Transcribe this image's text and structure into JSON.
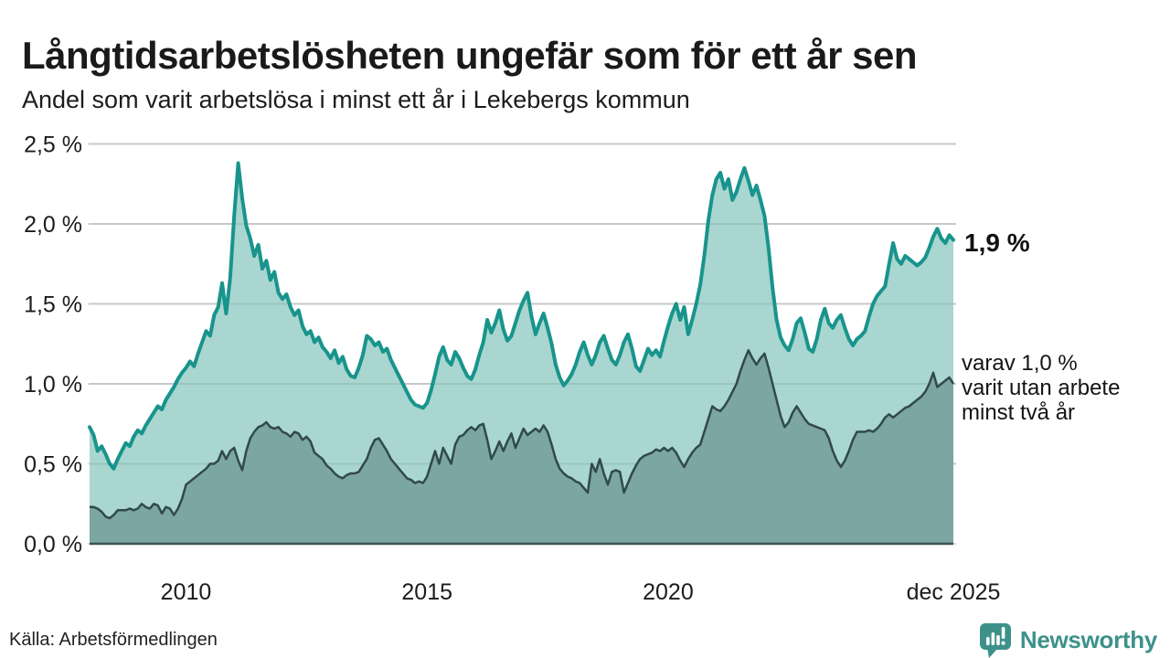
{
  "header": {
    "title": "Långtidsarbetslösheten ungefär som för ett år sen",
    "subtitle": "Andel som varit arbetslösa i minst ett år i Lekebergs kommun"
  },
  "annotations": {
    "latest_total": "1,9 %",
    "two_year_note": "varav 1,0 %\nvarit utan arbete\nminst två år"
  },
  "footer": {
    "source": "Källa: Arbetsförmedlingen",
    "logo_text": "Newsworthy"
  },
  "icons": {
    "logo_icon": "newsworthy-bar-chart-speech-bubble"
  },
  "chart_data": {
    "type": "area",
    "frequency": "monthly",
    "x_start": "2008-01",
    "x_end": "2025-12",
    "unit": "%",
    "ylim": [
      0,
      2.5
    ],
    "grid": true,
    "legend_position": "none",
    "y_ticks": [
      {
        "value": 0.0,
        "label": "0,0 %"
      },
      {
        "value": 0.5,
        "label": "0,5 %"
      },
      {
        "value": 1.0,
        "label": "1,0 %"
      },
      {
        "value": 1.5,
        "label": "1,5 %"
      },
      {
        "value": 2.0,
        "label": "2,0 %"
      },
      {
        "value": 2.5,
        "label": "2,5 %"
      }
    ],
    "x_ticks": [
      {
        "label": "2010",
        "month_index": 24
      },
      {
        "label": "2015",
        "month_index": 84
      },
      {
        "label": "2020",
        "month_index": 144
      },
      {
        "label": "dec 2025",
        "month_index": 215
      }
    ],
    "colors": {
      "total_line": "#18948c",
      "total_fill": "#a9d6d0",
      "two_plus_line": "#31494b",
      "two_plus_fill": "#7ba6a1",
      "gridline": "#dadada",
      "gridline_overlay": "rgba(40,60,58,0.10)",
      "axis_line": "#3c5153",
      "tick_text": "#1c1c1c",
      "logo_teal": "#3d9189"
    },
    "series": [
      {
        "name": "Arbetslösa minst ett år",
        "latest_value": 1.9,
        "values": [
          0.73,
          0.68,
          0.58,
          0.61,
          0.56,
          0.5,
          0.47,
          0.53,
          0.58,
          0.63,
          0.61,
          0.67,
          0.71,
          0.69,
          0.74,
          0.78,
          0.82,
          0.86,
          0.84,
          0.9,
          0.94,
          0.98,
          1.03,
          1.07,
          1.1,
          1.14,
          1.11,
          1.19,
          1.26,
          1.33,
          1.3,
          1.43,
          1.48,
          1.63,
          1.44,
          1.66,
          2.05,
          2.38,
          2.16,
          1.99,
          1.91,
          1.8,
          1.87,
          1.72,
          1.77,
          1.65,
          1.7,
          1.57,
          1.53,
          1.56,
          1.48,
          1.43,
          1.46,
          1.36,
          1.31,
          1.33,
          1.26,
          1.29,
          1.23,
          1.2,
          1.16,
          1.21,
          1.13,
          1.17,
          1.09,
          1.05,
          1.04,
          1.1,
          1.18,
          1.3,
          1.28,
          1.24,
          1.26,
          1.2,
          1.22,
          1.15,
          1.1,
          1.05,
          1.0,
          0.95,
          0.9,
          0.87,
          0.86,
          0.85,
          0.88,
          0.96,
          1.06,
          1.17,
          1.23,
          1.15,
          1.12,
          1.2,
          1.16,
          1.1,
          1.05,
          1.03,
          1.09,
          1.18,
          1.26,
          1.4,
          1.32,
          1.38,
          1.46,
          1.34,
          1.27,
          1.3,
          1.38,
          1.46,
          1.52,
          1.57,
          1.42,
          1.31,
          1.38,
          1.44,
          1.35,
          1.25,
          1.12,
          1.04,
          0.99,
          1.02,
          1.06,
          1.12,
          1.2,
          1.26,
          1.18,
          1.12,
          1.18,
          1.26,
          1.3,
          1.22,
          1.15,
          1.12,
          1.18,
          1.26,
          1.31,
          1.22,
          1.11,
          1.08,
          1.15,
          1.22,
          1.18,
          1.21,
          1.17,
          1.27,
          1.36,
          1.44,
          1.5,
          1.4,
          1.48,
          1.31,
          1.4,
          1.5,
          1.62,
          1.8,
          2.02,
          2.18,
          2.28,
          2.32,
          2.22,
          2.28,
          2.15,
          2.2,
          2.28,
          2.35,
          2.27,
          2.18,
          2.24,
          2.15,
          2.05,
          1.85,
          1.6,
          1.4,
          1.29,
          1.24,
          1.21,
          1.28,
          1.38,
          1.41,
          1.32,
          1.22,
          1.2,
          1.28,
          1.4,
          1.47,
          1.38,
          1.35,
          1.4,
          1.43,
          1.35,
          1.28,
          1.24,
          1.28,
          1.3,
          1.33,
          1.42,
          1.5,
          1.55,
          1.58,
          1.61,
          1.75,
          1.88,
          1.78,
          1.75,
          1.8,
          1.78,
          1.76,
          1.74,
          1.76,
          1.79,
          1.85,
          1.92,
          1.97,
          1.91,
          1.88,
          1.93,
          1.9
        ]
      },
      {
        "name": "varav utan arbete minst två år",
        "latest_value": 1.0,
        "values": [
          0.23,
          0.23,
          0.22,
          0.2,
          0.17,
          0.16,
          0.18,
          0.21,
          0.21,
          0.21,
          0.22,
          0.21,
          0.22,
          0.25,
          0.23,
          0.22,
          0.25,
          0.24,
          0.19,
          0.23,
          0.22,
          0.18,
          0.22,
          0.28,
          0.37,
          0.39,
          0.41,
          0.43,
          0.45,
          0.47,
          0.5,
          0.5,
          0.52,
          0.58,
          0.53,
          0.58,
          0.6,
          0.52,
          0.46,
          0.58,
          0.66,
          0.7,
          0.73,
          0.74,
          0.76,
          0.73,
          0.72,
          0.73,
          0.7,
          0.69,
          0.67,
          0.7,
          0.69,
          0.65,
          0.67,
          0.64,
          0.57,
          0.55,
          0.53,
          0.49,
          0.47,
          0.44,
          0.42,
          0.41,
          0.43,
          0.44,
          0.44,
          0.45,
          0.49,
          0.53,
          0.6,
          0.65,
          0.66,
          0.62,
          0.58,
          0.53,
          0.5,
          0.47,
          0.44,
          0.41,
          0.4,
          0.38,
          0.39,
          0.38,
          0.42,
          0.5,
          0.58,
          0.5,
          0.6,
          0.55,
          0.5,
          0.62,
          0.67,
          0.68,
          0.71,
          0.73,
          0.71,
          0.74,
          0.75,
          0.65,
          0.53,
          0.58,
          0.64,
          0.58,
          0.64,
          0.69,
          0.6,
          0.66,
          0.72,
          0.68,
          0.7,
          0.72,
          0.7,
          0.74,
          0.7,
          0.62,
          0.53,
          0.47,
          0.44,
          0.42,
          0.41,
          0.39,
          0.38,
          0.35,
          0.32,
          0.5,
          0.45,
          0.53,
          0.44,
          0.37,
          0.45,
          0.46,
          0.45,
          0.32,
          0.38,
          0.44,
          0.49,
          0.53,
          0.55,
          0.56,
          0.57,
          0.59,
          0.58,
          0.6,
          0.58,
          0.6,
          0.57,
          0.52,
          0.48,
          0.53,
          0.57,
          0.6,
          0.62,
          0.7,
          0.78,
          0.86,
          0.84,
          0.83,
          0.86,
          0.9,
          0.95,
          1.0,
          1.08,
          1.15,
          1.21,
          1.16,
          1.12,
          1.16,
          1.19,
          1.1,
          1.0,
          0.9,
          0.8,
          0.73,
          0.76,
          0.82,
          0.86,
          0.82,
          0.78,
          0.75,
          0.74,
          0.73,
          0.72,
          0.71,
          0.66,
          0.58,
          0.52,
          0.48,
          0.52,
          0.58,
          0.65,
          0.7,
          0.7,
          0.7,
          0.71,
          0.7,
          0.72,
          0.75,
          0.79,
          0.81,
          0.79,
          0.81,
          0.83,
          0.85,
          0.86,
          0.88,
          0.9,
          0.92,
          0.95,
          1.0,
          1.07,
          0.98,
          1.0,
          1.02,
          1.04,
          1.0
        ]
      }
    ]
  }
}
